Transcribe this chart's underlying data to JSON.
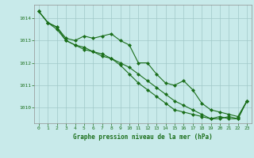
{
  "title": "Graphe pression niveau de la mer (hPa)",
  "xlabel_hours": [
    0,
    1,
    2,
    3,
    4,
    5,
    6,
    7,
    8,
    9,
    10,
    11,
    12,
    13,
    14,
    15,
    16,
    17,
    18,
    19,
    20,
    21,
    22,
    23
  ],
  "line1": [
    1014.3,
    1013.8,
    1013.6,
    1013.1,
    1013.0,
    1013.2,
    1013.1,
    1013.2,
    1013.3,
    1013.0,
    1012.8,
    1012.0,
    1012.0,
    1011.5,
    1011.1,
    1011.0,
    1011.2,
    1010.8,
    1010.2,
    1009.9,
    1009.8,
    1009.7,
    1009.6,
    1010.3
  ],
  "line2": [
    1014.3,
    1013.8,
    1013.5,
    1013.0,
    1012.8,
    1012.6,
    1012.5,
    1012.3,
    1012.2,
    1011.9,
    1011.5,
    1011.1,
    1010.8,
    1010.5,
    1010.2,
    1009.9,
    1009.8,
    1009.7,
    1009.6,
    1009.5,
    1009.5,
    1009.6,
    1009.5,
    1010.3
  ],
  "line3": [
    1014.3,
    1013.8,
    1013.6,
    1013.0,
    1012.8,
    1012.7,
    1012.5,
    1012.4,
    1012.2,
    1012.0,
    1011.8,
    1011.5,
    1011.2,
    1010.9,
    1010.6,
    1010.3,
    1010.1,
    1009.9,
    1009.7,
    1009.5,
    1009.6,
    1009.5,
    1009.5,
    1010.3
  ],
  "line_color": "#1a6e1a",
  "bg_color": "#c8eaea",
  "grid_color": "#a0c8c8",
  "text_color": "#1a6e1a",
  "ylim_min": 1009.3,
  "ylim_max": 1014.6,
  "yticks": [
    1010,
    1011,
    1012,
    1013,
    1014
  ],
  "marker": "D",
  "markersize": 2.0,
  "linewidth": 0.8,
  "title_fontsize": 5.5,
  "tick_fontsize": 4.5
}
